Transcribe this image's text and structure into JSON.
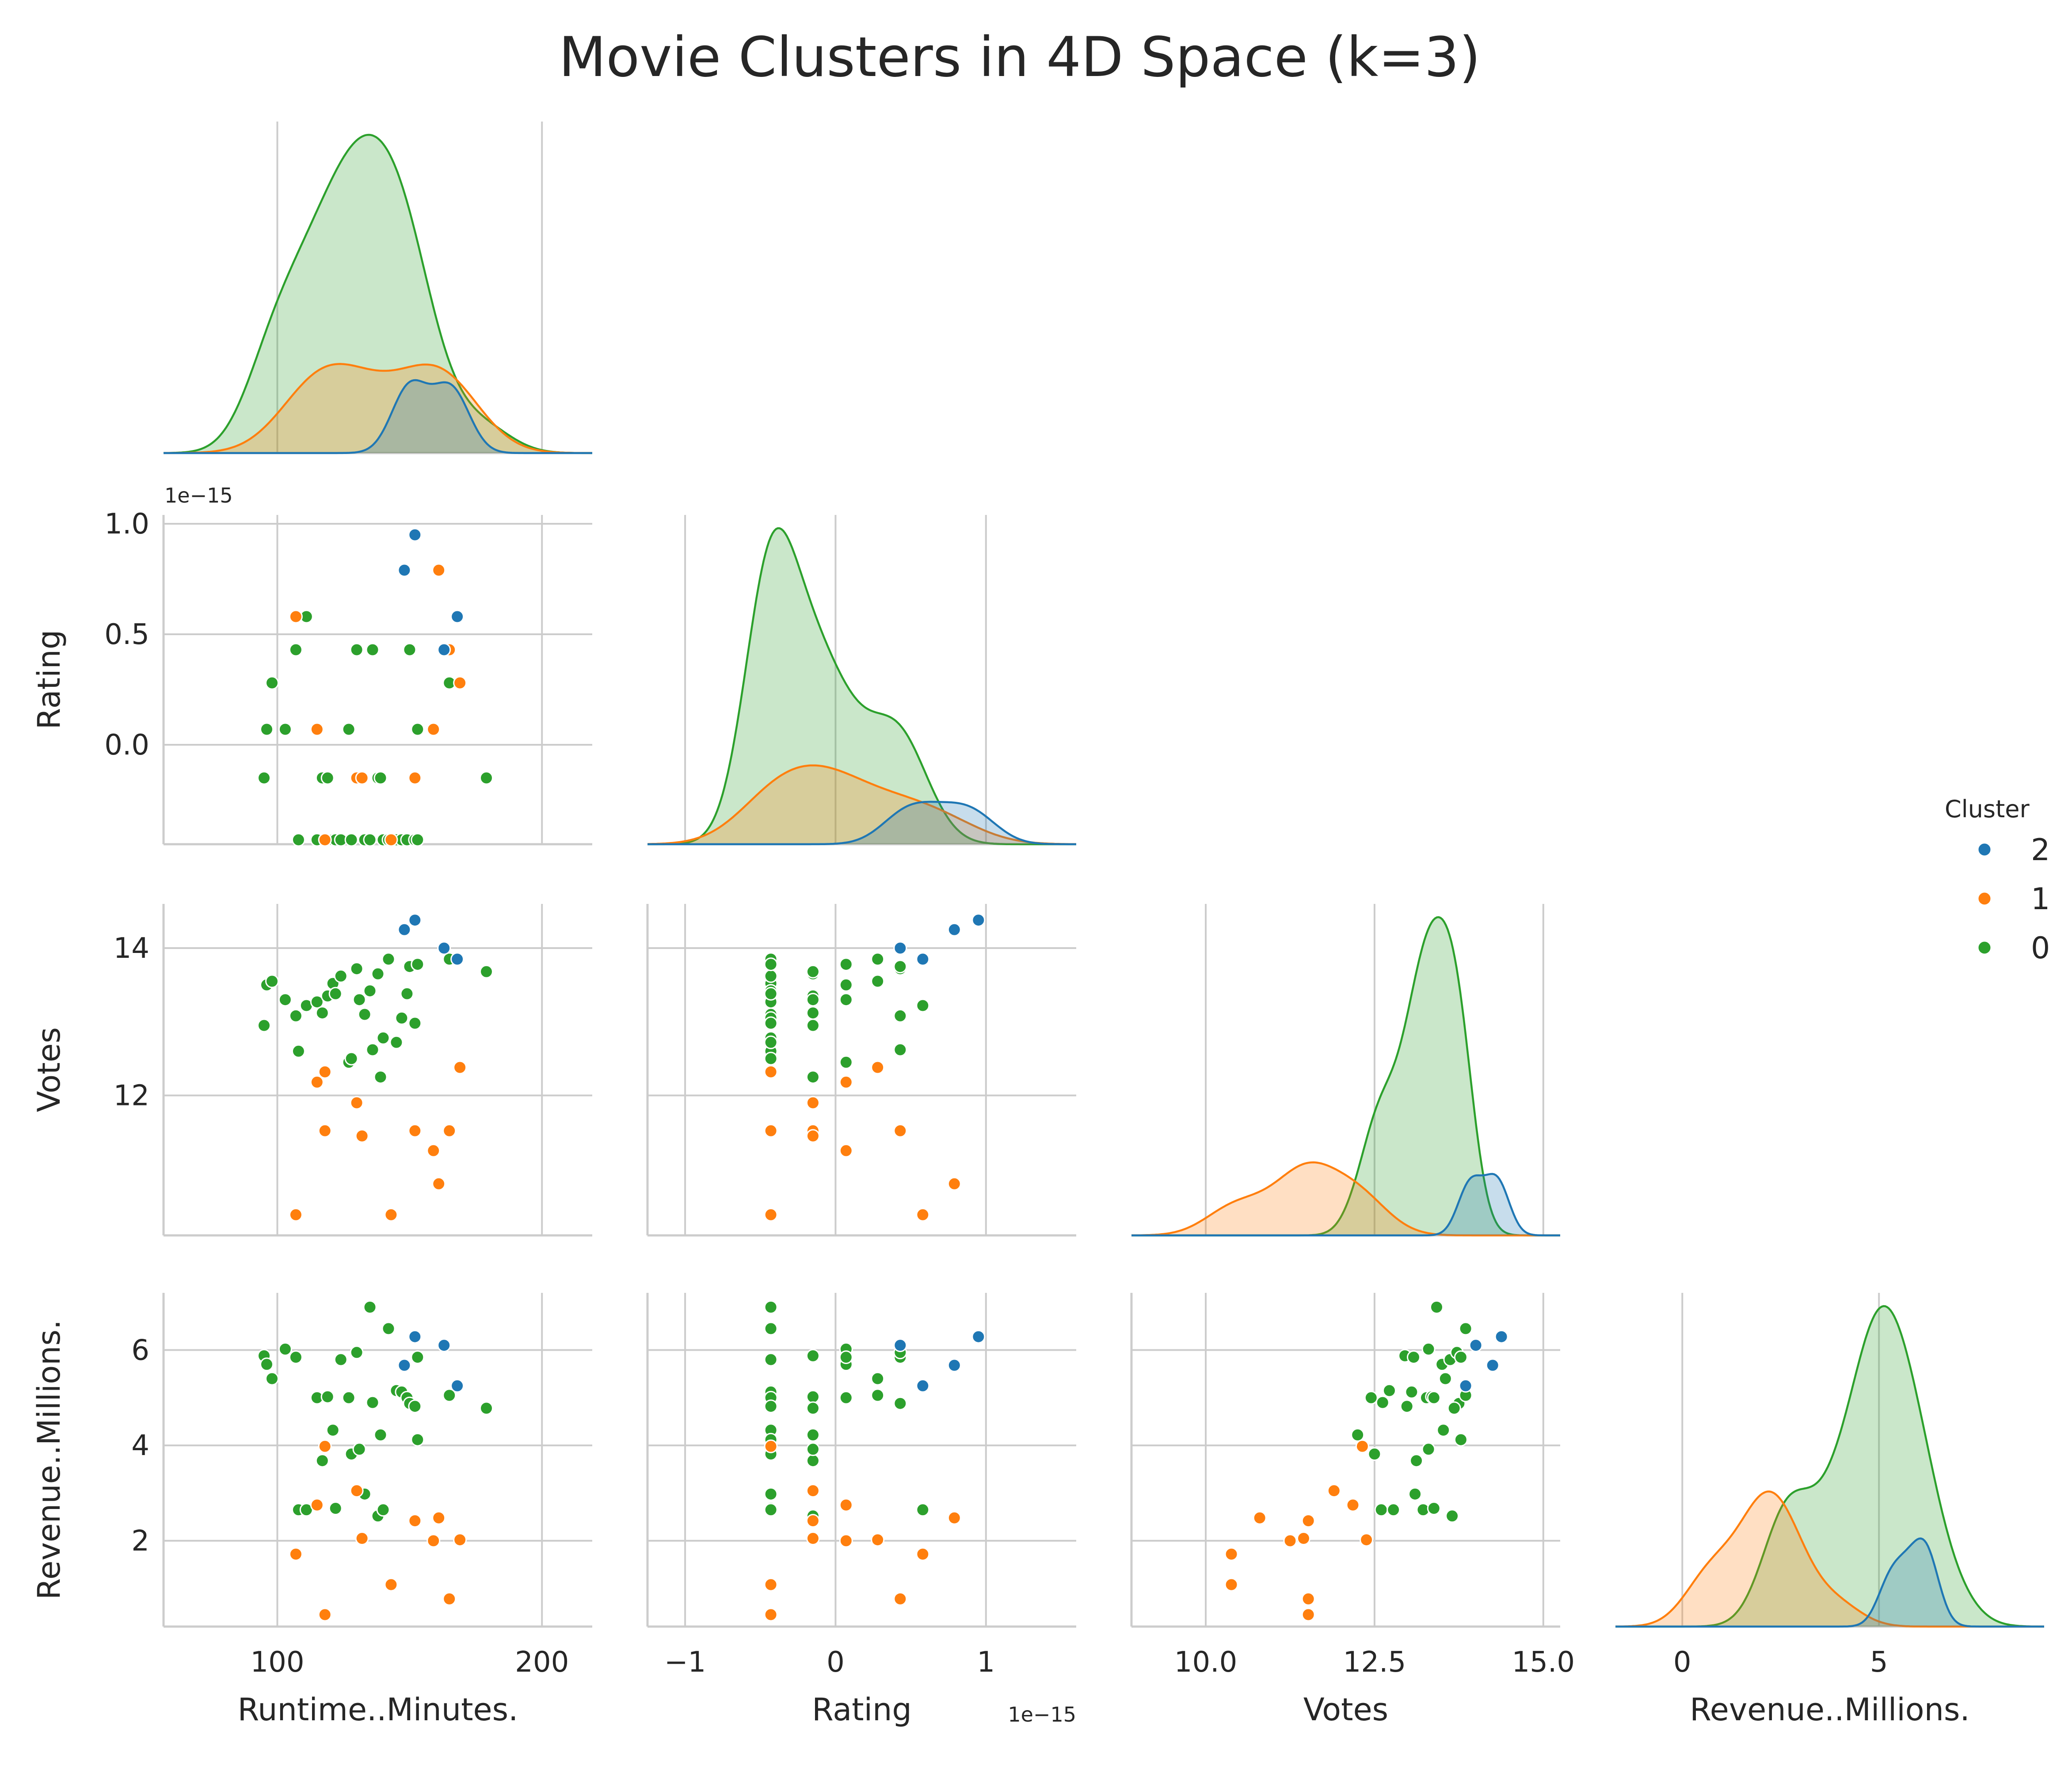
{
  "chart_data": {
    "type": "scatter",
    "title": "Movie Clusters in 4D Space (k=3)",
    "variables": [
      "Runtime..Minutes.",
      "Rating",
      "Votes",
      "Revenue..Millions."
    ],
    "offset_label_rating": "1e−15",
    "legend": {
      "title": "Cluster",
      "placement": "right",
      "entries": [
        {
          "label": "2",
          "color": "#1f77b4"
        },
        {
          "label": "1",
          "color": "#ff7f0e"
        },
        {
          "label": "0",
          "color": "#2ca02c"
        }
      ]
    },
    "grid": true,
    "axes": {
      "Runtime..Minutes.": {
        "lim": [
          57,
          219
        ],
        "ticks": [
          100,
          200
        ],
        "tick_labels": [
          "100",
          "200"
        ]
      },
      "Rating": {
        "lim": [
          -1.25,
          1.6
        ],
        "ticks": [
          -1,
          0,
          1
        ],
        "tick_labels": [
          "−1",
          "0",
          "1"
        ]
      },
      "Votes": {
        "lim": [
          8.9,
          15.25
        ],
        "ticks": [
          10.0,
          12.5,
          15.0
        ],
        "tick_labels": [
          "10.0",
          "12.5",
          "15.0"
        ]
      },
      "Revenue..Millions.": {
        "lim": [
          -1.7,
          9.2
        ],
        "ticks": [
          0,
          5
        ],
        "tick_labels": [
          "0",
          "5"
        ]
      },
      "Rating_row": {
        "lim": [
          -0.45,
          1.04
        ],
        "ticks": [
          0.0,
          0.5,
          1.0
        ],
        "tick_labels": [
          "0.0",
          "0.5",
          "1.0"
        ]
      },
      "Votes_row": {
        "lim": [
          10.1,
          14.6
        ],
        "ticks": [
          12,
          14
        ],
        "tick_labels": [
          "12",
          "14"
        ]
      },
      "Revenue_row": {
        "lim": [
          0.2,
          7.2
        ],
        "ticks": [
          2,
          4,
          6
        ],
        "tick_labels": [
          "2",
          "4",
          "6"
        ]
      }
    },
    "points": [
      {
        "cluster": 2,
        "runtime": 152,
        "rating": 0.95,
        "votes": 14.38,
        "revenue": 6.28
      },
      {
        "cluster": 2,
        "runtime": 148,
        "rating": 0.79,
        "votes": 14.25,
        "revenue": 5.68
      },
      {
        "cluster": 2,
        "runtime": 168,
        "rating": 0.58,
        "votes": 13.85,
        "revenue": 5.25
      },
      {
        "cluster": 2,
        "runtime": 163,
        "rating": 0.43,
        "votes": 14.0,
        "revenue": 6.1
      },
      {
        "cluster": 1,
        "runtime": 107,
        "rating": 0.58,
        "votes": 10.38,
        "revenue": 1.72
      },
      {
        "cluster": 1,
        "runtime": 161,
        "rating": 0.79,
        "votes": 10.8,
        "revenue": 2.48
      },
      {
        "cluster": 1,
        "runtime": 165,
        "rating": 0.43,
        "votes": 11.52,
        "revenue": 0.78
      },
      {
        "cluster": 1,
        "runtime": 169,
        "rating": 0.28,
        "votes": 12.38,
        "revenue": 2.02
      },
      {
        "cluster": 1,
        "runtime": 159,
        "rating": 0.07,
        "votes": 11.25,
        "revenue": 2.0
      },
      {
        "cluster": 1,
        "runtime": 115,
        "rating": 0.07,
        "votes": 12.18,
        "revenue": 2.75
      },
      {
        "cluster": 1,
        "runtime": 130,
        "rating": -0.15,
        "votes": 11.9,
        "revenue": 3.05
      },
      {
        "cluster": 1,
        "runtime": 152,
        "rating": -0.15,
        "votes": 11.52,
        "revenue": 2.42
      },
      {
        "cluster": 1,
        "runtime": 118,
        "rating": -0.43,
        "votes": 12.32,
        "revenue": 3.98
      },
      {
        "cluster": 1,
        "runtime": 143,
        "rating": -0.43,
        "votes": 10.38,
        "revenue": 1.08
      },
      {
        "cluster": 1,
        "runtime": 118,
        "rating": -0.43,
        "votes": 11.52,
        "revenue": 0.45
      },
      {
        "cluster": 1,
        "runtime": 132,
        "rating": -0.15,
        "votes": 11.45,
        "revenue": 2.05
      },
      {
        "cluster": 0,
        "runtime": 95,
        "rating": -0.15,
        "votes": 12.95,
        "revenue": 5.88
      },
      {
        "cluster": 0,
        "runtime": 96,
        "rating": 0.07,
        "votes": 13.5,
        "revenue": 5.7
      },
      {
        "cluster": 0,
        "runtime": 98,
        "rating": 0.28,
        "votes": 13.55,
        "revenue": 5.4
      },
      {
        "cluster": 0,
        "runtime": 103,
        "rating": 0.07,
        "votes": 13.3,
        "revenue": 6.02
      },
      {
        "cluster": 0,
        "runtime": 107,
        "rating": 0.43,
        "votes": 13.08,
        "revenue": 5.85
      },
      {
        "cluster": 0,
        "runtime": 108,
        "rating": -0.43,
        "votes": 12.6,
        "revenue": 2.65
      },
      {
        "cluster": 0,
        "runtime": 111,
        "rating": 0.58,
        "votes": 13.22,
        "revenue": 2.65
      },
      {
        "cluster": 0,
        "runtime": 115,
        "rating": -0.43,
        "votes": 13.27,
        "revenue": 5.0
      },
      {
        "cluster": 0,
        "runtime": 117,
        "rating": -0.15,
        "votes": 13.12,
        "revenue": 3.68
      },
      {
        "cluster": 0,
        "runtime": 119,
        "rating": -0.15,
        "votes": 13.35,
        "revenue": 5.02
      },
      {
        "cluster": 0,
        "runtime": 121,
        "rating": -0.43,
        "votes": 13.52,
        "revenue": 4.32
      },
      {
        "cluster": 0,
        "runtime": 122,
        "rating": -0.43,
        "votes": 13.38,
        "revenue": 2.68
      },
      {
        "cluster": 0,
        "runtime": 124,
        "rating": -0.43,
        "votes": 13.62,
        "revenue": 5.8
      },
      {
        "cluster": 0,
        "runtime": 127,
        "rating": 0.07,
        "votes": 12.45,
        "revenue": 5.0
      },
      {
        "cluster": 0,
        "runtime": 128,
        "rating": -0.43,
        "votes": 12.5,
        "revenue": 3.82
      },
      {
        "cluster": 0,
        "runtime": 130,
        "rating": 0.43,
        "votes": 13.72,
        "revenue": 5.95
      },
      {
        "cluster": 0,
        "runtime": 131,
        "rating": -0.15,
        "votes": 13.3,
        "revenue": 3.92
      },
      {
        "cluster": 0,
        "runtime": 133,
        "rating": -0.43,
        "votes": 13.1,
        "revenue": 2.98
      },
      {
        "cluster": 0,
        "runtime": 135,
        "rating": -0.43,
        "votes": 13.42,
        "revenue": 6.9
      },
      {
        "cluster": 0,
        "runtime": 136,
        "rating": 0.43,
        "votes": 12.62,
        "revenue": 4.9
      },
      {
        "cluster": 0,
        "runtime": 138,
        "rating": -0.15,
        "votes": 13.65,
        "revenue": 2.52
      },
      {
        "cluster": 0,
        "runtime": 139,
        "rating": -0.15,
        "votes": 12.25,
        "revenue": 4.22
      },
      {
        "cluster": 0,
        "runtime": 140,
        "rating": -0.43,
        "votes": 12.78,
        "revenue": 2.65
      },
      {
        "cluster": 0,
        "runtime": 142,
        "rating": -0.43,
        "votes": 13.85,
        "revenue": 6.45
      },
      {
        "cluster": 0,
        "runtime": 145,
        "rating": -0.43,
        "votes": 12.72,
        "revenue": 5.15
      },
      {
        "cluster": 0,
        "runtime": 147,
        "rating": -0.43,
        "votes": 13.05,
        "revenue": 5.12
      },
      {
        "cluster": 0,
        "runtime": 149,
        "rating": -0.43,
        "votes": 13.38,
        "revenue": 5.0
      },
      {
        "cluster": 0,
        "runtime": 150,
        "rating": 0.43,
        "votes": 13.75,
        "revenue": 4.88
      },
      {
        "cluster": 0,
        "runtime": 152,
        "rating": -0.43,
        "votes": 12.98,
        "revenue": 4.82
      },
      {
        "cluster": 0,
        "runtime": 153,
        "rating": 0.07,
        "votes": 13.78,
        "revenue": 5.85
      },
      {
        "cluster": 0,
        "runtime": 153,
        "rating": -0.43,
        "votes": 13.78,
        "revenue": 4.12
      },
      {
        "cluster": 0,
        "runtime": 165,
        "rating": 0.28,
        "votes": 13.85,
        "revenue": 5.05
      },
      {
        "cluster": 0,
        "runtime": 179,
        "rating": -0.15,
        "votes": 13.68,
        "revenue": 4.78
      }
    ]
  }
}
